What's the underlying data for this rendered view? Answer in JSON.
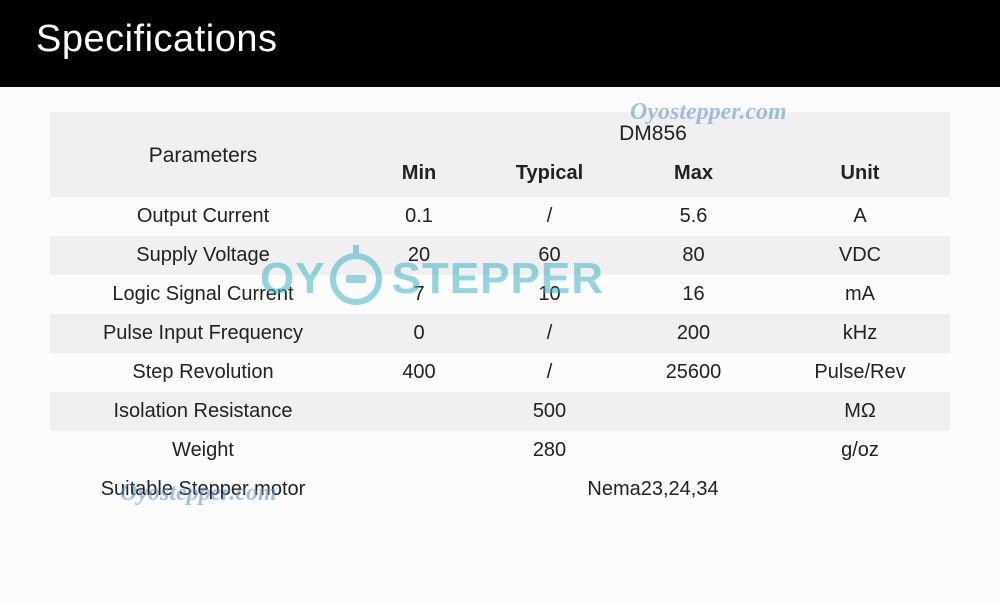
{
  "page": {
    "title": "Specifications",
    "background_color": "#fdfcfd",
    "header_bg": "#000000",
    "header_text_color": "#ffffff"
  },
  "watermarks": {
    "small_text": "Oyostepper.com",
    "small_color": "#5b92c7",
    "small_fontsize": 24,
    "center_oy": "OY",
    "center_stepper": "STEPPER",
    "center_color": "#3fb4c3",
    "center_fontsize": 44,
    "opacity": 0.55
  },
  "table": {
    "type": "table",
    "header_bg": "#f0eff1",
    "row_alt_bg": "#f0eff1",
    "text_color": "#222222",
    "fontsize": 20,
    "col_widths_pct": [
      34,
      14,
      15,
      17,
      20
    ],
    "param_header": "Parameters",
    "model": "DM856",
    "sub_headers": {
      "min": "Min",
      "typical": "Typical",
      "max": "Max",
      "unit": "Unit"
    },
    "rows": [
      {
        "param": "Output Current",
        "min": "0.1",
        "typical": "/",
        "max": "5.6",
        "unit": "A",
        "alt": false
      },
      {
        "param": "Supply Voltage",
        "min": "20",
        "typical": "60",
        "max": "80",
        "unit": "VDC",
        "alt": true
      },
      {
        "param": "Logic Signal Current",
        "min": "7",
        "typical": "10",
        "max": "16",
        "unit": "mA",
        "alt": false
      },
      {
        "param": "Pulse Input Frequency",
        "min": "0",
        "typical": "/",
        "max": "200",
        "unit": "kHz",
        "alt": true
      },
      {
        "param": "Step Revolution",
        "min": "400",
        "typical": "/",
        "max": "25600",
        "unit": "Pulse/Rev",
        "alt": false
      },
      {
        "param": "Isolation Resistance",
        "min": "",
        "typical": "500",
        "max": "",
        "unit": "MΩ",
        "alt": true
      },
      {
        "param": "Weight",
        "min": "",
        "typical": "280",
        "max": "",
        "unit": "g/oz",
        "alt": false
      },
      {
        "param": "Suitable Stepper motor",
        "min": "",
        "typical": "",
        "max": "Nema23,24,34",
        "unit": "",
        "alt": false,
        "merge_value": true
      }
    ]
  }
}
